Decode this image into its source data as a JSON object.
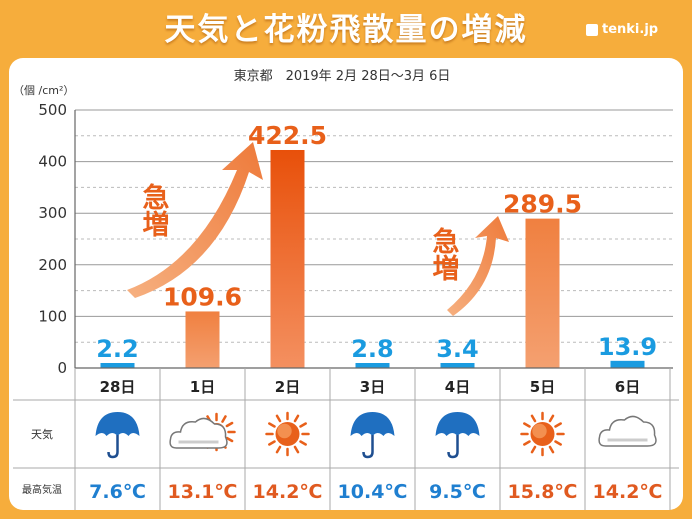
{
  "header": {
    "title": "天気と花粉飛散量の増減",
    "logo": "tenki.jp"
  },
  "chart_data": {
    "type": "bar",
    "subtitle": "東京都　2019年 2月 28日〜3月 6日",
    "ylabel": "（個 /cm²）",
    "ylim": [
      0,
      500
    ],
    "yticks": [
      "0",
      "100",
      "200",
      "300",
      "400",
      "500"
    ],
    "categories": [
      "28日",
      "1日",
      "2日",
      "3日",
      "4日",
      "5日",
      "6日"
    ],
    "values": [
      2.2,
      109.6,
      422.5,
      2.8,
      3.4,
      289.5,
      13.9
    ],
    "value_labels": [
      "2.2",
      "109.6",
      "422.5",
      "2.8",
      "3.4",
      "289.5",
      "13.9"
    ],
    "annotations": [
      "急増",
      "急増"
    ],
    "colors": {
      "low": "#1a9be0",
      "high": "#f08a4a",
      "peak": "#e85a10",
      "label_high": "#e8601a"
    }
  },
  "table": {
    "weather_label": "天気",
    "temp_label": "最高気温",
    "weather_icons": [
      "umbrella-icon",
      "cloud-sun-icon",
      "sun-icon",
      "umbrella-icon",
      "umbrella-icon",
      "sun-icon",
      "cloud-icon"
    ],
    "temps": [
      "7.6℃",
      "13.1℃",
      "14.2℃",
      "10.4℃",
      "9.5℃",
      "15.8℃",
      "14.2℃"
    ],
    "temp_colors": [
      "#1f7fd0",
      "#e05a20",
      "#e05a20",
      "#1f7fd0",
      "#1f7fd0",
      "#e05a20",
      "#e05a20"
    ]
  }
}
